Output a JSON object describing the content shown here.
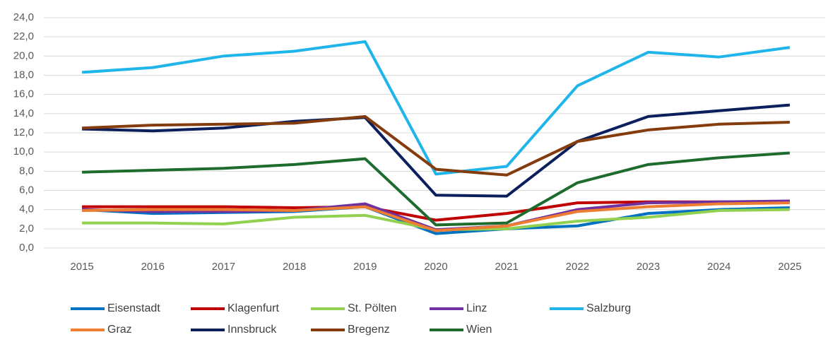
{
  "chart_data": {
    "type": "line",
    "categories": [
      "2015",
      "2016",
      "2017",
      "2018",
      "2019",
      "2020",
      "2021",
      "2022",
      "2023",
      "2024",
      "2025"
    ],
    "series": [
      {
        "name": "Eisenstadt",
        "color": "#0070c0",
        "values": [
          4.0,
          3.6,
          3.7,
          3.8,
          4.3,
          1.5,
          2.0,
          2.3,
          3.6,
          4.0,
          4.2
        ]
      },
      {
        "name": "Klagenfurt",
        "color": "#c00000",
        "values": [
          4.3,
          4.3,
          4.3,
          4.2,
          4.3,
          2.9,
          3.6,
          4.7,
          4.8,
          4.8,
          4.8
        ]
      },
      {
        "name": "St. Pölten",
        "color": "#92d050",
        "values": [
          2.6,
          2.6,
          2.5,
          3.2,
          3.4,
          1.9,
          2.0,
          2.8,
          3.2,
          3.9,
          4.0
        ]
      },
      {
        "name": "Linz",
        "color": "#7030a0",
        "values": [
          4.0,
          3.8,
          3.8,
          3.9,
          4.6,
          1.9,
          2.3,
          4.0,
          4.7,
          4.8,
          4.9
        ]
      },
      {
        "name": "Salzburg",
        "color": "#1fb5ea",
        "values": [
          18.3,
          18.8,
          20.0,
          20.5,
          21.5,
          7.7,
          8.5,
          16.9,
          20.4,
          19.9,
          20.9
        ]
      },
      {
        "name": "Graz",
        "color": "#ed7d31",
        "values": [
          3.9,
          4.0,
          4.0,
          3.9,
          4.3,
          1.8,
          2.3,
          3.8,
          4.3,
          4.6,
          4.7
        ]
      },
      {
        "name": "Innsbruck",
        "color": "#0b1f5c",
        "values": [
          12.4,
          12.2,
          12.5,
          13.2,
          13.6,
          5.5,
          5.4,
          11.1,
          13.7,
          14.3,
          14.9
        ]
      },
      {
        "name": "Bregenz",
        "color": "#843c0c",
        "values": [
          12.5,
          12.8,
          12.9,
          13.0,
          13.7,
          8.2,
          7.6,
          11.1,
          12.3,
          12.9,
          13.1
        ]
      },
      {
        "name": "Wien",
        "color": "#1e6b2e",
        "values": [
          7.9,
          8.1,
          8.3,
          8.7,
          9.3,
          2.4,
          2.6,
          6.8,
          8.7,
          9.4,
          9.9
        ]
      }
    ],
    "ylim": [
      0,
      24
    ],
    "yticks": [
      {
        "value": 0,
        "label": "0,0"
      },
      {
        "value": 2,
        "label": "2,0"
      },
      {
        "value": 4,
        "label": "4,0"
      },
      {
        "value": 6,
        "label": "6,0"
      },
      {
        "value": 8,
        "label": "8,0"
      },
      {
        "value": 10,
        "label": "10,0"
      },
      {
        "value": 12,
        "label": "12,0"
      },
      {
        "value": 14,
        "label": "14,0"
      },
      {
        "value": 16,
        "label": "16,0"
      },
      {
        "value": 18,
        "label": "18,0"
      },
      {
        "value": 20,
        "label": "20,0"
      },
      {
        "value": 22,
        "label": "22,0"
      },
      {
        "value": 24,
        "label": "24,0"
      }
    ],
    "grid": true,
    "legend": "bottom"
  }
}
